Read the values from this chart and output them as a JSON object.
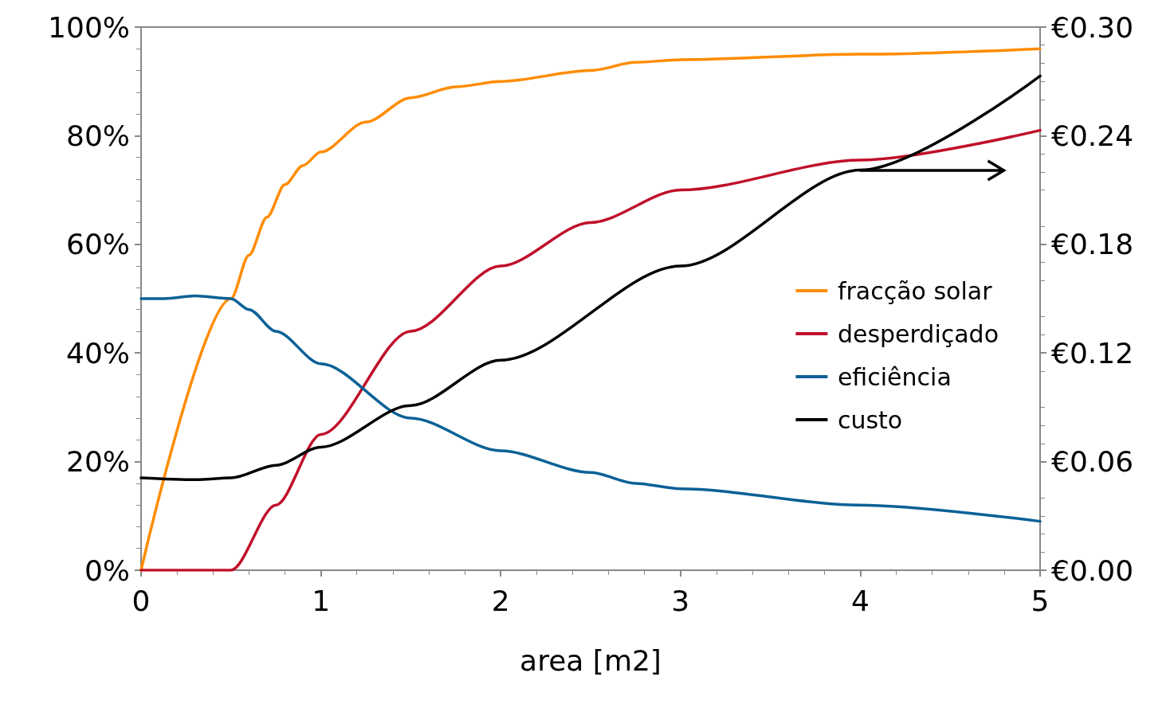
{
  "chart_data": {
    "type": "line",
    "xlabel": "area [m2]",
    "xlim": [
      0,
      5
    ],
    "xticks": [
      0,
      1,
      2,
      3,
      4,
      5
    ],
    "ylim": [
      0,
      100
    ],
    "yticks": [
      {
        "value": 0,
        "label": "0%"
      },
      {
        "value": 20,
        "label": "20%"
      },
      {
        "value": 40,
        "label": "40%"
      },
      {
        "value": 60,
        "label": "60%"
      },
      {
        "value": 80,
        "label": "80%"
      },
      {
        "value": 100,
        "label": "100%"
      }
    ],
    "y2lim": [
      0,
      0.3
    ],
    "y2ticks": [
      {
        "value": 0,
        "label": "€0.00"
      },
      {
        "value": 0.06,
        "label": "€0.06"
      },
      {
        "value": 0.12,
        "label": "€0.12"
      },
      {
        "value": 0.18,
        "label": "€0.18"
      },
      {
        "value": 0.24,
        "label": "€0.24"
      },
      {
        "value": 0.3,
        "label": "€0.30"
      }
    ],
    "grid": false,
    "legend": "center right",
    "marker": "none",
    "line_style": "solid",
    "series": [
      {
        "name": "fracção solar",
        "color": "#ff8c00",
        "x": [
          0,
          0.5,
          0.6,
          0.7,
          0.8,
          0.9,
          1,
          1.25,
          1.5,
          1.75,
          2,
          2.5,
          2.75,
          3,
          4,
          5
        ],
        "values": [
          0,
          50,
          58,
          65,
          71,
          74.5,
          77,
          82.5,
          87,
          89,
          90,
          92,
          93.5,
          94,
          95,
          96
        ]
      },
      {
        "name": "desperdiçado",
        "color": "#c0102a",
        "x": [
          0,
          0.5,
          0.75,
          1,
          1.5,
          2,
          2.5,
          3,
          4,
          5
        ],
        "values": [
          0,
          0,
          12,
          25,
          44,
          56,
          64,
          70,
          75.5,
          81
        ]
      },
      {
        "name": "eficiência",
        "color": "#0a6196",
        "x": [
          0,
          0.13,
          0.3,
          0.5,
          0.6,
          0.75,
          1,
          1.5,
          2,
          2.5,
          2.75,
          3,
          4,
          5
        ],
        "values": [
          50,
          50,
          50.5,
          50,
          48,
          44,
          38,
          28,
          22,
          18,
          16,
          15,
          12,
          9
        ]
      },
      {
        "name": "custo",
        "color": "#000000",
        "axis": "y2",
        "x": [
          0,
          0.3,
          0.5,
          0.75,
          1,
          1.5,
          2,
          3,
          4,
          5
        ],
        "values": [
          0.051,
          0.05,
          0.051,
          0.058,
          0.068,
          0.091,
          0.116,
          0.168,
          0.221,
          0.273
        ]
      }
    ]
  }
}
